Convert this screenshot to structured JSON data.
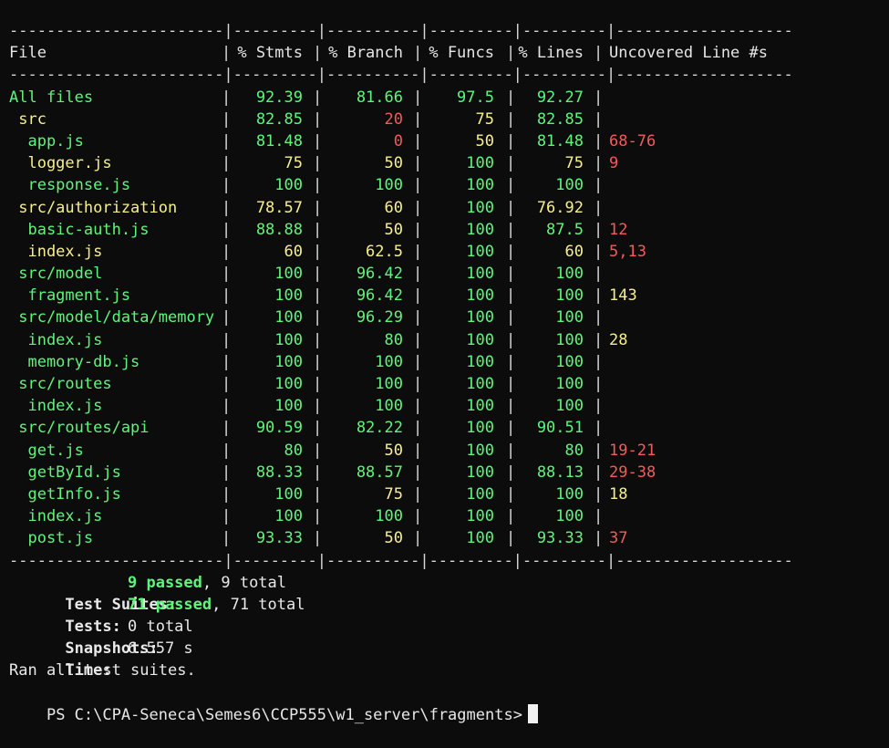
{
  "header": {
    "file": "File",
    "stmts": "% Stmts",
    "branch": "% Branch",
    "funcs": "% Funcs",
    "lines": "% Lines",
    "uncovered": "Uncovered Line #s"
  },
  "rows": [
    {
      "file": "All files",
      "stmts": "92.39",
      "branch": "81.66",
      "funcs": "97.5",
      "lines": "92.27",
      "uncovered": "",
      "colors": [
        "green",
        "green",
        "green",
        "green",
        "green",
        "green"
      ]
    },
    {
      "file": " src",
      "stmts": "82.85",
      "branch": "20",
      "funcs": "75",
      "lines": "82.85",
      "uncovered": "",
      "colors": [
        "yellow",
        "green",
        "red",
        "yellow",
        "green",
        "red"
      ]
    },
    {
      "file": "  app.js",
      "stmts": "81.48",
      "branch": "0",
      "funcs": "50",
      "lines": "81.48",
      "uncovered": "68-76",
      "colors": [
        "green",
        "green",
        "red",
        "yellow",
        "green",
        "red"
      ]
    },
    {
      "file": "  logger.js",
      "stmts": "75",
      "branch": "50",
      "funcs": "100",
      "lines": "75",
      "uncovered": "9",
      "colors": [
        "yellow",
        "yellow",
        "yellow",
        "green",
        "yellow",
        "red"
      ]
    },
    {
      "file": "  response.js",
      "stmts": "100",
      "branch": "100",
      "funcs": "100",
      "lines": "100",
      "uncovered": "",
      "colors": [
        "green",
        "green",
        "green",
        "green",
        "green",
        "green"
      ]
    },
    {
      "file": " src/authorization",
      "stmts": "78.57",
      "branch": "60",
      "funcs": "100",
      "lines": "76.92",
      "uncovered": "",
      "colors": [
        "yellow",
        "yellow",
        "yellow",
        "green",
        "yellow",
        "yellow"
      ]
    },
    {
      "file": "  basic-auth.js",
      "stmts": "88.88",
      "branch": "50",
      "funcs": "100",
      "lines": "87.5",
      "uncovered": "12",
      "colors": [
        "green",
        "green",
        "yellow",
        "green",
        "green",
        "red"
      ]
    },
    {
      "file": "  index.js",
      "stmts": "60",
      "branch": "62.5",
      "funcs": "100",
      "lines": "60",
      "uncovered": "5,13",
      "colors": [
        "yellow",
        "yellow",
        "yellow",
        "green",
        "yellow",
        "red"
      ]
    },
    {
      "file": " src/model",
      "stmts": "100",
      "branch": "96.42",
      "funcs": "100",
      "lines": "100",
      "uncovered": "",
      "colors": [
        "green",
        "green",
        "green",
        "green",
        "green",
        "green"
      ]
    },
    {
      "file": "  fragment.js",
      "stmts": "100",
      "branch": "96.42",
      "funcs": "100",
      "lines": "100",
      "uncovered": "143",
      "colors": [
        "green",
        "green",
        "green",
        "green",
        "green",
        "yellow"
      ]
    },
    {
      "file": " src/model/data/memory",
      "stmts": "100",
      "branch": "96.29",
      "funcs": "100",
      "lines": "100",
      "uncovered": "",
      "colors": [
        "green",
        "green",
        "green",
        "green",
        "green",
        "green"
      ]
    },
    {
      "file": "  index.js",
      "stmts": "100",
      "branch": "80",
      "funcs": "100",
      "lines": "100",
      "uncovered": "28",
      "colors": [
        "green",
        "green",
        "green",
        "green",
        "green",
        "yellow"
      ]
    },
    {
      "file": "  memory-db.js",
      "stmts": "100",
      "branch": "100",
      "funcs": "100",
      "lines": "100",
      "uncovered": "",
      "colors": [
        "green",
        "green",
        "green",
        "green",
        "green",
        "green"
      ]
    },
    {
      "file": " src/routes",
      "stmts": "100",
      "branch": "100",
      "funcs": "100",
      "lines": "100",
      "uncovered": "",
      "colors": [
        "green",
        "green",
        "green",
        "green",
        "green",
        "green"
      ]
    },
    {
      "file": "  index.js",
      "stmts": "100",
      "branch": "100",
      "funcs": "100",
      "lines": "100",
      "uncovered": "",
      "colors": [
        "green",
        "green",
        "green",
        "green",
        "green",
        "green"
      ]
    },
    {
      "file": " src/routes/api",
      "stmts": "90.59",
      "branch": "82.22",
      "funcs": "100",
      "lines": "90.51",
      "uncovered": "",
      "colors": [
        "green",
        "green",
        "green",
        "green",
        "green",
        "green"
      ]
    },
    {
      "file": "  get.js",
      "stmts": "80",
      "branch": "50",
      "funcs": "100",
      "lines": "80",
      "uncovered": "19-21",
      "colors": [
        "green",
        "green",
        "yellow",
        "green",
        "green",
        "red"
      ]
    },
    {
      "file": "  getById.js",
      "stmts": "88.33",
      "branch": "88.57",
      "funcs": "100",
      "lines": "88.13",
      "uncovered": "29-38",
      "colors": [
        "green",
        "green",
        "green",
        "green",
        "green",
        "red"
      ]
    },
    {
      "file": "  getInfo.js",
      "stmts": "100",
      "branch": "75",
      "funcs": "100",
      "lines": "100",
      "uncovered": "18",
      "colors": [
        "green",
        "green",
        "yellow",
        "green",
        "green",
        "yellow"
      ]
    },
    {
      "file": "  index.js",
      "stmts": "100",
      "branch": "100",
      "funcs": "100",
      "lines": "100",
      "uncovered": "",
      "colors": [
        "green",
        "green",
        "green",
        "green",
        "green",
        "green"
      ]
    },
    {
      "file": "  post.js",
      "stmts": "93.33",
      "branch": "50",
      "funcs": "100",
      "lines": "93.33",
      "uncovered": "37",
      "colors": [
        "green",
        "green",
        "yellow",
        "green",
        "green",
        "red"
      ]
    }
  ],
  "separator": "-----------------------|---------|----------|---------|---------|-------------------",
  "summary": {
    "suites_label": "Test Suites:",
    "suites_passed": "9 passed",
    "suites_total": ", 9 total",
    "tests_label": "Tests:",
    "tests_passed": "71 passed",
    "tests_total": ", 71 total",
    "snapshots_label": "Snapshots:",
    "snapshots_value": "0 total",
    "time_label": "Time:",
    "time_value": "6.557 s",
    "ran_message": "Ran all test suites."
  },
  "prompt": "PS C:\\CPA-Seneca\\Semes6\\CCP555\\w1_server\\fragments>",
  "colors": {
    "background": "#0c0c0c",
    "green": "#5ff57c",
    "yellow": "#f7f08a",
    "red": "#f25b5b",
    "text": "#e8e8e8"
  }
}
